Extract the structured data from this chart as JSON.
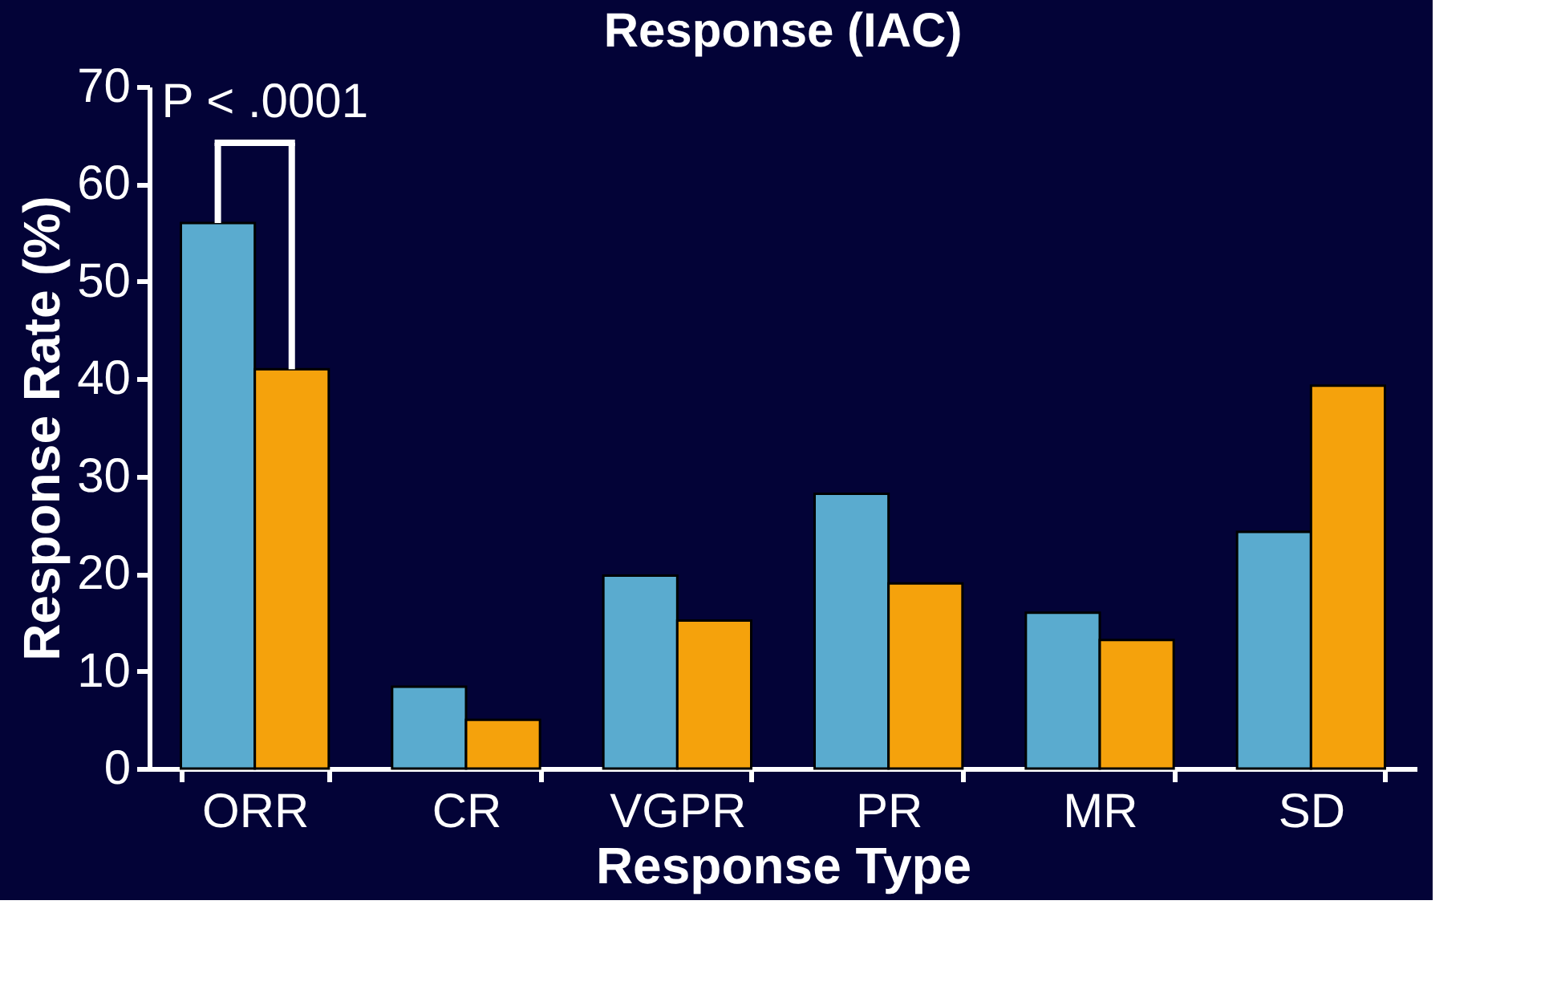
{
  "chart_data": {
    "type": "bar",
    "title": "Response (IAC)",
    "xlabel": "Response Type",
    "ylabel": "Response Rate (%)",
    "categories": [
      "ORR",
      "CR",
      "VGPR",
      "PR",
      "MR",
      "SD"
    ],
    "series": [
      {
        "color": "#5aabcf",
        "values": [
          56,
          8.4,
          19.8,
          28.2,
          16,
          24.3
        ]
      },
      {
        "color": "#f5a20c",
        "values": [
          41,
          5,
          15.2,
          19,
          13.2,
          39.3
        ]
      }
    ],
    "ylim": [
      0,
      70
    ],
    "yticks": [
      0,
      10,
      20,
      30,
      40,
      50,
      60,
      70
    ],
    "grid": false,
    "legend": false,
    "annotations": [
      {
        "text": "P < .0001",
        "x": "ORR",
        "y": 56
      }
    ]
  }
}
